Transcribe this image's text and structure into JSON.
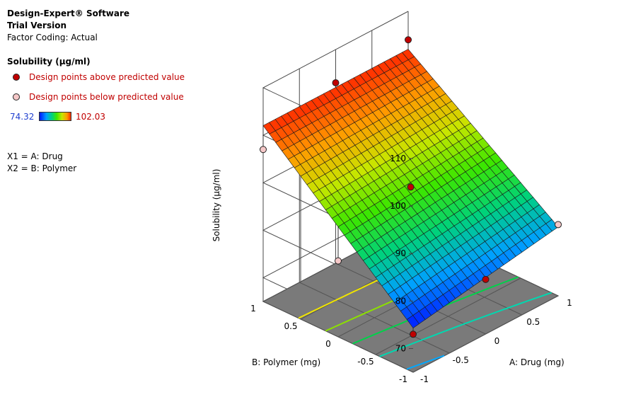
{
  "header": {
    "software": "Design-Expert® Software",
    "version": "Trial Version",
    "coding": "Factor Coding: Actual"
  },
  "legend": {
    "response": "Solubility (µg/ml)",
    "above_label": "Design points above predicted value",
    "below_label": "Design points below predicted value",
    "min_value": "74.32",
    "max_value": "102.03",
    "above_color": "#c00000",
    "below_color": "#f5c8c8"
  },
  "factors": {
    "x1": "X1 = A: Drug",
    "x2": "X2 = B: Polymer"
  },
  "chart_data": {
    "type": "surface-3d",
    "zlabel": "Solubility (µg/ml)",
    "xlabel": "A: Drug (mg)",
    "ylabel": "B: Polymer (mg)",
    "x_ticks": [
      "-1",
      "-0.5",
      "0",
      "0.5",
      "1"
    ],
    "y_ticks": [
      "-1",
      "-0.5",
      "0",
      "0.5",
      "1"
    ],
    "z_ticks": [
      "70",
      "80",
      "90",
      "100",
      "110"
    ],
    "xlim": [
      -1,
      1
    ],
    "ylim": [
      -1,
      1
    ],
    "zlim": [
      65,
      110
    ],
    "surface": {
      "corners": [
        {
          "A": -1,
          "B": -1,
          "value": 74.32
        },
        {
          "A": 1,
          "B": -1,
          "value": 79.5
        },
        {
          "A": -1,
          "B": 1,
          "value": 102.03
        },
        {
          "A": 1,
          "B": 1,
          "value": 102.03
        }
      ],
      "min": 74.32,
      "max": 102.03,
      "colormap": [
        "#0016ff",
        "#00a0ff",
        "#00d27a",
        "#3ce600",
        "#c8e600",
        "#ff9a00",
        "#ff2a00"
      ]
    },
    "design_points": [
      {
        "A": -1,
        "B": -1,
        "value": 73.0,
        "type": "above"
      },
      {
        "A": 0,
        "B": -1,
        "value": 76.5,
        "type": "above"
      },
      {
        "A": 1,
        "B": -1,
        "value": 80.0,
        "type": "below"
      },
      {
        "A": 0,
        "B": 0,
        "value": 88.5,
        "type": "above"
      },
      {
        "A": -1,
        "B": 0,
        "value": 81.0,
        "type": "below"
      },
      {
        "A": -1,
        "B": 1,
        "value": 97.0,
        "type": "below"
      },
      {
        "A": 0,
        "B": 1,
        "value": 103.0,
        "type": "above"
      },
      {
        "A": 1,
        "B": 1,
        "value": 104.0,
        "type": "above"
      }
    ],
    "contours": [
      {
        "value": 95.5,
        "color": "#f0e400"
      },
      {
        "value": 90.5,
        "color": "#8ce000"
      },
      {
        "value": 85.5,
        "color": "#00d24a"
      },
      {
        "value": 80.5,
        "color": "#00d8b0"
      },
      {
        "value": 75.5,
        "color": "#00a8ff"
      }
    ],
    "grid": true
  }
}
